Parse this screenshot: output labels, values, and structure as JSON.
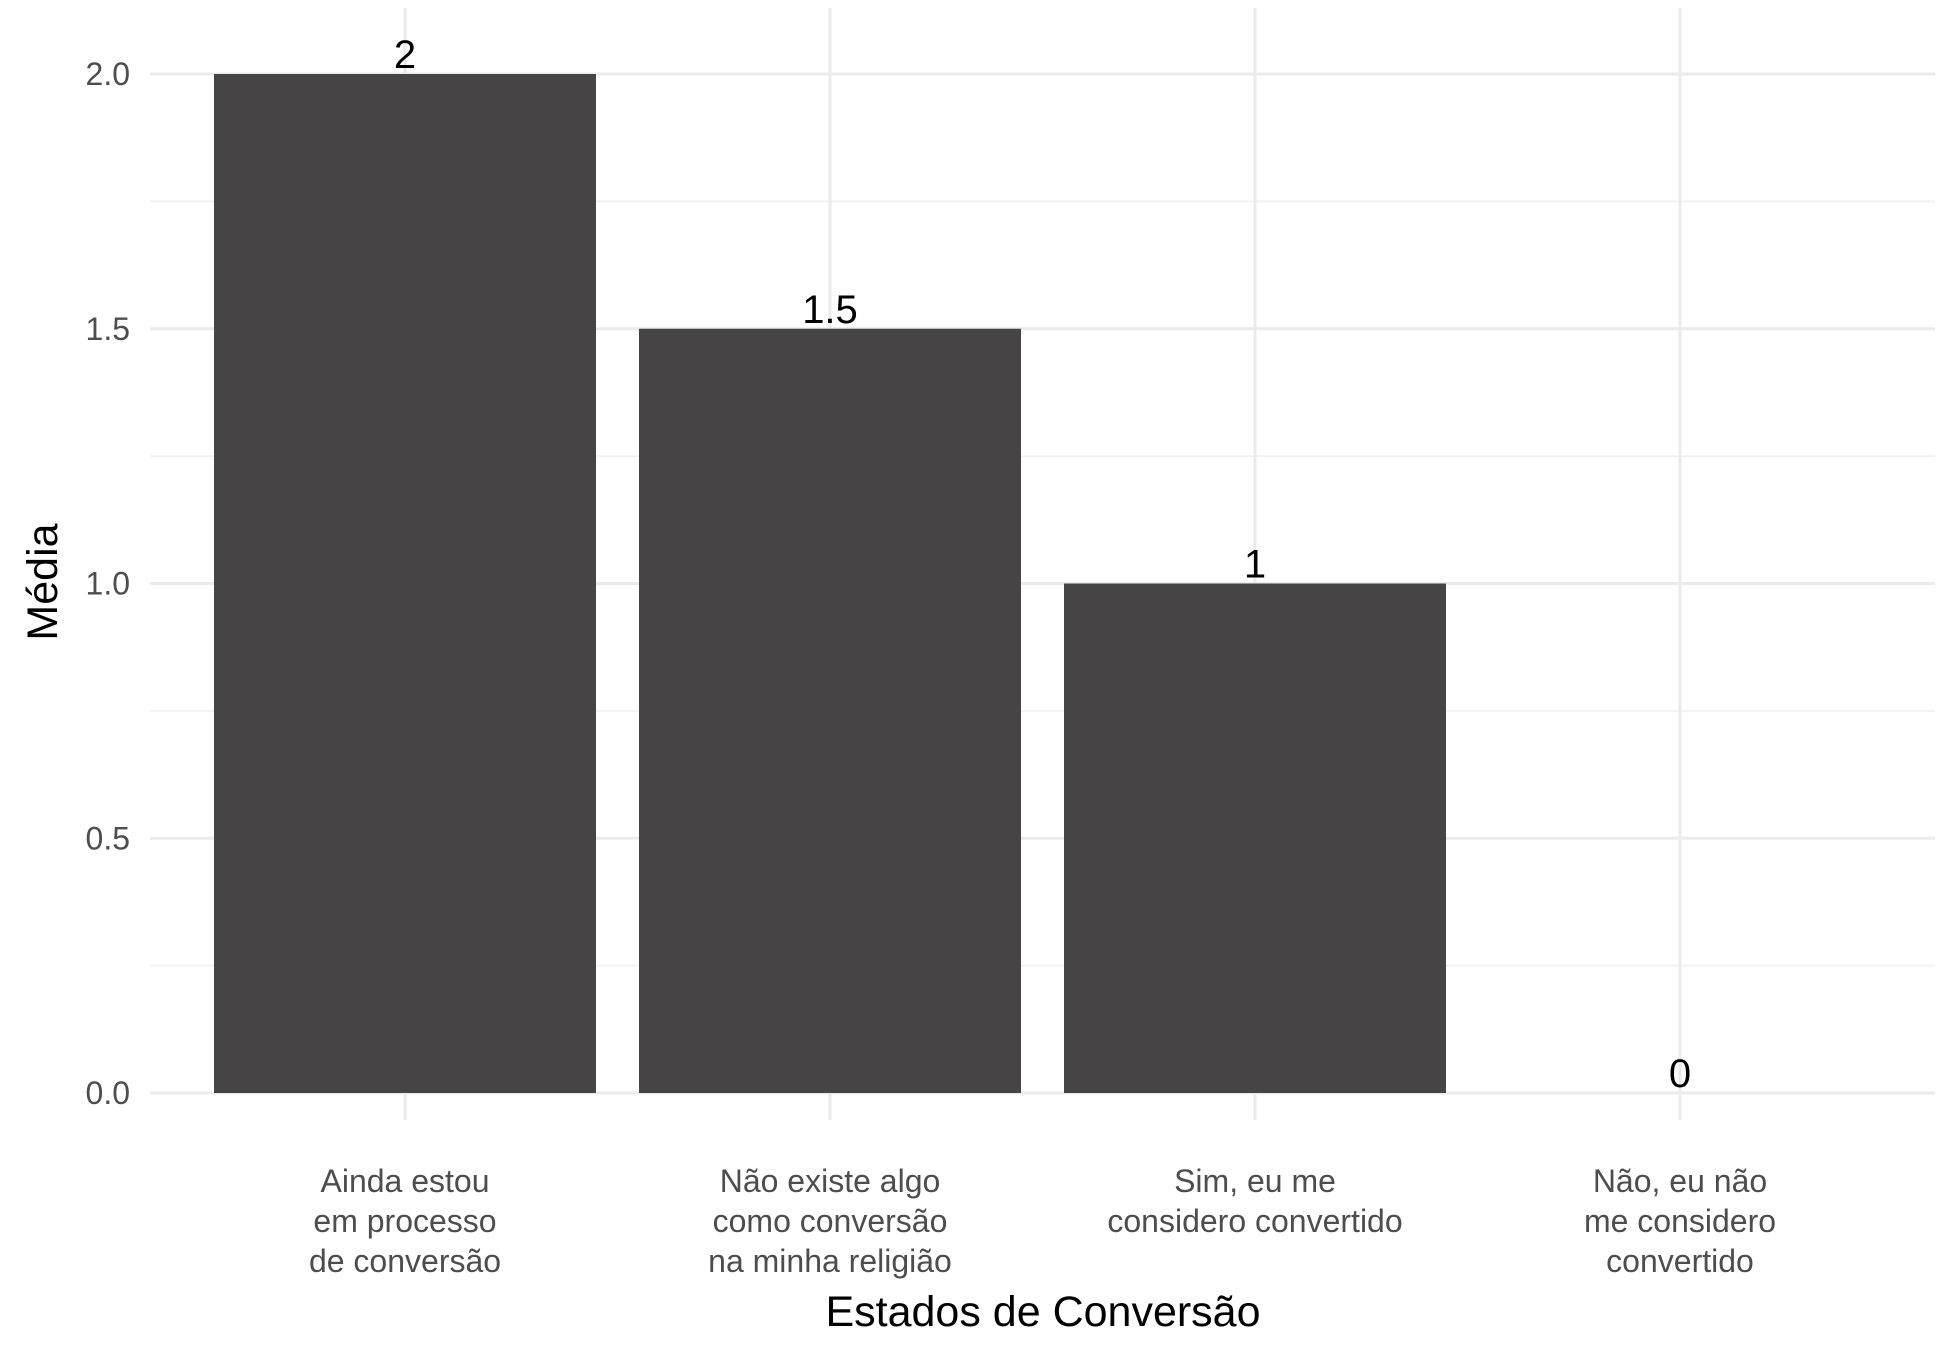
{
  "chart_data": {
    "type": "bar",
    "categories": [
      [
        "Ainda estou",
        "em processo",
        "de conversão"
      ],
      [
        "Não existe algo",
        "como conversão",
        "na minha religião"
      ],
      [
        "Sim, eu me",
        "considero convertido"
      ],
      [
        "Não, eu não",
        "me considero",
        "convertido"
      ]
    ],
    "values": [
      2,
      1.5,
      1,
      0
    ],
    "value_labels": [
      "2",
      "1.5",
      "1",
      "0"
    ],
    "xlabel": "Estados de Conversão",
    "ylabel": "Média",
    "ylim": [
      0,
      2
    ],
    "yticks": [
      0,
      0.5,
      1,
      1.5,
      2
    ],
    "ytick_labels": [
      "0.0",
      "0.5",
      "1.0",
      "1.5",
      "2.0"
    ],
    "grid": true,
    "legend": "none",
    "colors": {
      "bar": "#474445",
      "grid_major": "#ebebeb",
      "grid_minor": "#f2f2f2",
      "tick_text": "#4d4d4d",
      "label_text": "#000000"
    }
  }
}
